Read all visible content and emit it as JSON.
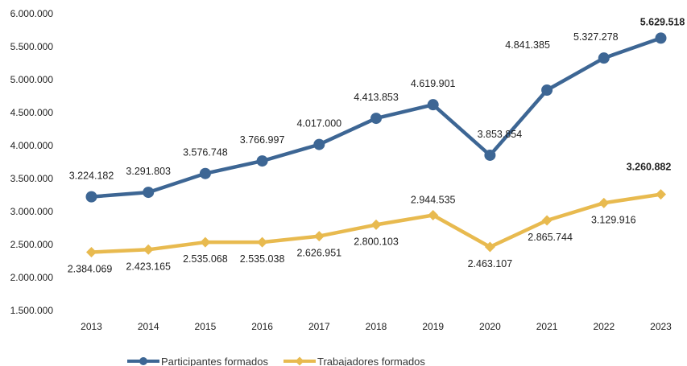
{
  "chart_data": {
    "type": "line",
    "x": [
      "2013",
      "2014",
      "2015",
      "2016",
      "2017",
      "2018",
      "2019",
      "2020",
      "2021",
      "2022",
      "2023"
    ],
    "yticks": [
      "1.500.000",
      "2.000.000",
      "2.500.000",
      "3.000.000",
      "3.500.000",
      "4.000.000",
      "4.500.000",
      "5.000.000",
      "5.500.000",
      "6.000.000"
    ],
    "ylim": [
      1500000,
      6000000
    ],
    "grid": false,
    "legend": "bottom",
    "series": [
      {
        "name": "Participantes formados",
        "color": "#3d6694",
        "values": [
          3224182,
          3291803,
          3576748,
          3766997,
          4017000,
          4413853,
          4619901,
          3853854,
          4841385,
          5327278,
          5629518
        ],
        "labels": [
          "3.224.182",
          "3.291.803",
          "3.576.748",
          "3.766.997",
          "4.017.000",
          "4.413.853",
          "4.619.901",
          "3.853.854",
          "4.841.385",
          "5.327.278",
          "5.629.518"
        ]
      },
      {
        "name": "Trabajadores formados",
        "color": "#e8ba4f",
        "values": [
          2384069,
          2423165,
          2535068,
          2535038,
          2626951,
          2800103,
          2944535,
          2463107,
          2865744,
          3129916,
          3260882
        ],
        "labels": [
          "2.384.069",
          "2.423.165",
          "2.535.068",
          "2.535.038",
          "2.626.951",
          "2.800.103",
          "2.944.535",
          "2.463.107",
          "2.865.744",
          "3.129.916",
          "3.260.882"
        ]
      }
    ]
  }
}
